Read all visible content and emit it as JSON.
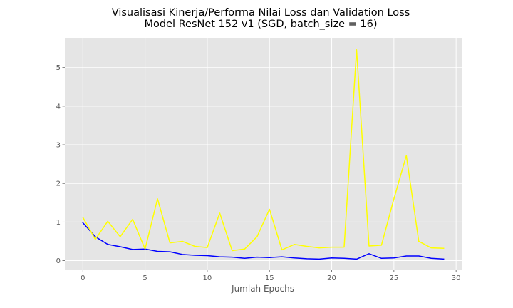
{
  "chart_data": {
    "type": "line",
    "title_lines": [
      "Visualisasi Kinerja/Performa Nilai Loss dan Validation Loss",
      "Model ResNet 152 v1 (SGD, batch_size = 16)"
    ],
    "xlabel": "Jumlah Epochs",
    "ylabel": "",
    "xlim": [
      -1.45,
      30.45
    ],
    "ylim": [
      -0.23,
      5.77
    ],
    "xticks": [
      0,
      5,
      10,
      15,
      20,
      25,
      30
    ],
    "yticks": [
      0,
      1,
      2,
      3,
      4,
      5
    ],
    "grid": true,
    "legend": "none",
    "x": [
      0,
      1,
      2,
      3,
      4,
      5,
      6,
      7,
      8,
      9,
      10,
      11,
      12,
      13,
      14,
      15,
      16,
      17,
      18,
      19,
      20,
      21,
      22,
      23,
      24,
      25,
      26,
      27,
      28,
      29
    ],
    "series": [
      {
        "name": "loss",
        "color": "#0000ff",
        "values": [
          0.98,
          0.62,
          0.42,
          0.36,
          0.29,
          0.3,
          0.24,
          0.23,
          0.16,
          0.14,
          0.13,
          0.1,
          0.09,
          0.06,
          0.09,
          0.08,
          0.1,
          0.07,
          0.05,
          0.04,
          0.07,
          0.06,
          0.04,
          0.18,
          0.06,
          0.07,
          0.12,
          0.12,
          0.06,
          0.04
        ]
      },
      {
        "name": "val_loss",
        "color": "#ffff00",
        "values": [
          1.12,
          0.55,
          1.02,
          0.62,
          1.07,
          0.3,
          1.6,
          0.46,
          0.5,
          0.37,
          0.34,
          1.23,
          0.26,
          0.3,
          0.62,
          1.33,
          0.28,
          0.42,
          0.37,
          0.33,
          0.35,
          0.35,
          5.46,
          0.38,
          0.4,
          1.6,
          2.72,
          0.5,
          0.33,
          0.32
        ]
      }
    ]
  }
}
